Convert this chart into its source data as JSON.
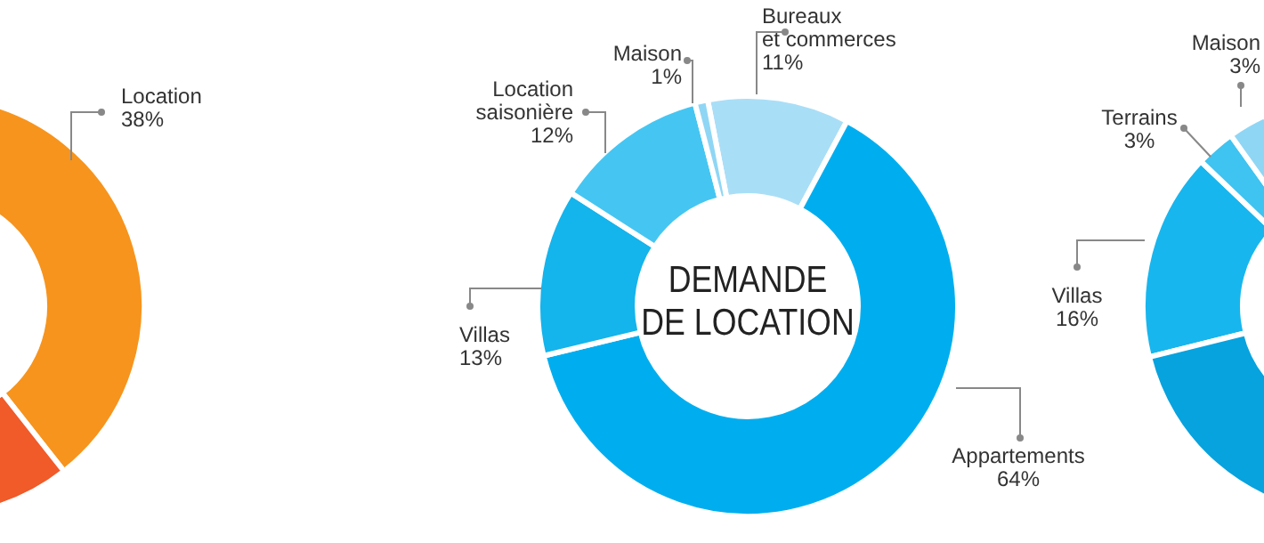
{
  "chart_data": [
    {
      "type": "donut",
      "categories": [
        "Location",
        null
      ],
      "values": [
        38,
        62
      ],
      "colors": [
        "#f7941d",
        "#f15a29"
      ],
      "value_labels": [
        "38%",
        null
      ]
    },
    {
      "type": "donut",
      "title": "DEMANDE\nDE LOCATION",
      "categories": [
        "Bureaux\net commerces",
        "Appartements",
        "Villas",
        "Location\nsaisonière",
        "Maison"
      ],
      "values": [
        11,
        64,
        13,
        12,
        1
      ],
      "colors": [
        "#a9def7",
        "#00aeef",
        "#14b4ec",
        "#45c6f2",
        "#8fd6f5"
      ],
      "value_labels": [
        "11%",
        "64%",
        "13%",
        "12%",
        "1%"
      ]
    },
    {
      "type": "donut",
      "categories": [
        "Villas",
        "Terrains",
        "Maison",
        null
      ],
      "values": [
        16,
        3,
        3,
        78
      ],
      "colors": [
        "#17b6ee",
        "#3fc3f1",
        "#8fd6f5",
        "#06a3df"
      ],
      "value_labels": [
        "16%",
        "3%",
        "3%",
        null
      ]
    }
  ]
}
